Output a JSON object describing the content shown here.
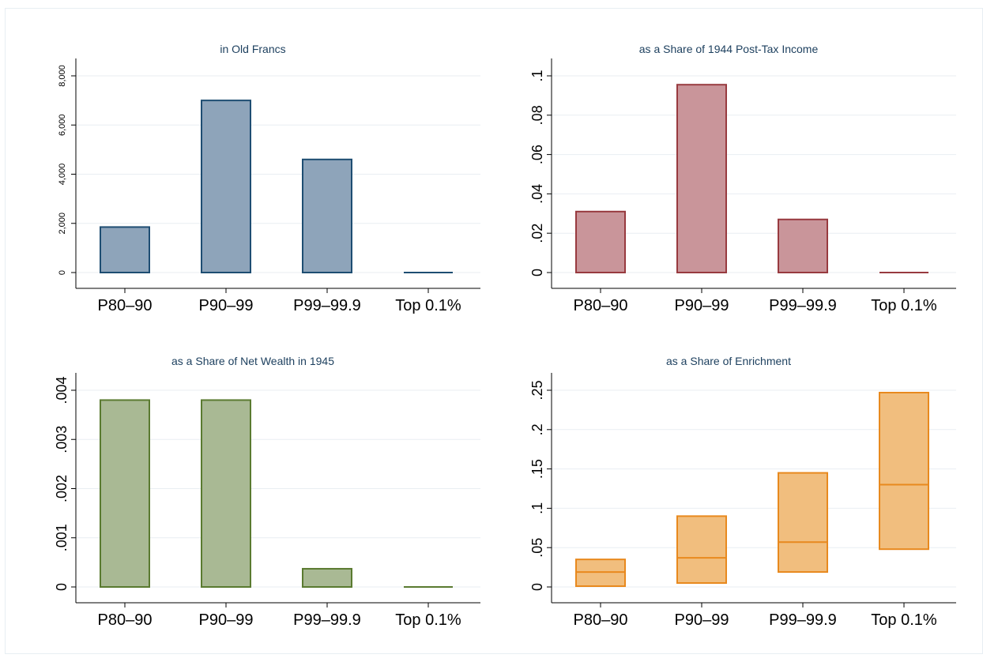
{
  "chart_data": [
    {
      "type": "bar",
      "title": "in Old Francs",
      "categories": [
        "P80–90",
        "P90–99",
        "P99–99.9",
        "Top 0.1%"
      ],
      "values": [
        1850,
        7000,
        4600,
        0
      ],
      "ylim": [
        0,
        8000
      ],
      "yticks": [
        0,
        2000,
        4000,
        6000,
        8000
      ],
      "ytick_labels": [
        "0",
        "2,000",
        "4,000",
        "6,000",
        "8,000"
      ],
      "ytick_rotated": true,
      "ytick_font": 11,
      "color": {
        "fill": "#8ea4ba",
        "stroke": "#1e4d72",
        "median": "#1e4d72"
      },
      "grid": true
    },
    {
      "type": "bar",
      "title": "as a Share of 1944 Post-Tax Income",
      "categories": [
        "P80–90",
        "P90–99",
        "P99–99.9",
        "Top 0.1%"
      ],
      "values": [
        0.031,
        0.0955,
        0.027,
        0
      ],
      "ylim": [
        0,
        0.1
      ],
      "yticks": [
        0,
        0.02,
        0.04,
        0.06,
        0.08,
        0.1
      ],
      "ytick_labels": [
        "0",
        ".02",
        ".04",
        ".06",
        ".08",
        ".1"
      ],
      "ytick_rotated": true,
      "ytick_font": 18,
      "color": {
        "fill": "#c9959a",
        "stroke": "#983a3f",
        "median": "#983a3f"
      },
      "grid": true
    },
    {
      "type": "bar",
      "title": "as a Share of Net Wealth in 1945",
      "categories": [
        "P80–90",
        "P90–99",
        "P99–99.9",
        "Top 0.1%"
      ],
      "values": [
        0.0038,
        0.0038,
        0.00037,
        0
      ],
      "ylim": [
        0,
        0.004
      ],
      "yticks": [
        0,
        0.001,
        0.002,
        0.003,
        0.004
      ],
      "ytick_labels": [
        "0",
        ".001",
        ".002",
        ".003",
        ".004"
      ],
      "ytick_rotated": true,
      "ytick_font": 18,
      "color": {
        "fill": "#a9b994",
        "stroke": "#5a7a30",
        "median": "#5a7a30"
      },
      "grid": true
    },
    {
      "type": "box",
      "title": "as a Share of Enrichment",
      "categories": [
        "P80–90",
        "P90–99",
        "P99–99.9",
        "Top 0.1%"
      ],
      "lows": [
        0.001,
        0.005,
        0.019,
        0.048
      ],
      "medians": [
        0.019,
        0.037,
        0.057,
        0.13
      ],
      "highs": [
        0.035,
        0.09,
        0.145,
        0.247
      ],
      "ylim": [
        0,
        0.25
      ],
      "yticks": [
        0,
        0.05,
        0.1,
        0.15,
        0.2,
        0.25
      ],
      "ytick_labels": [
        "0",
        ".05",
        ".1",
        ".15",
        ".2",
        ".25"
      ],
      "ytick_rotated": true,
      "ytick_font": 18,
      "color": {
        "fill": "#f1be7e",
        "stroke": "#e8891e",
        "median": "#e8891e"
      },
      "grid": true
    }
  ]
}
